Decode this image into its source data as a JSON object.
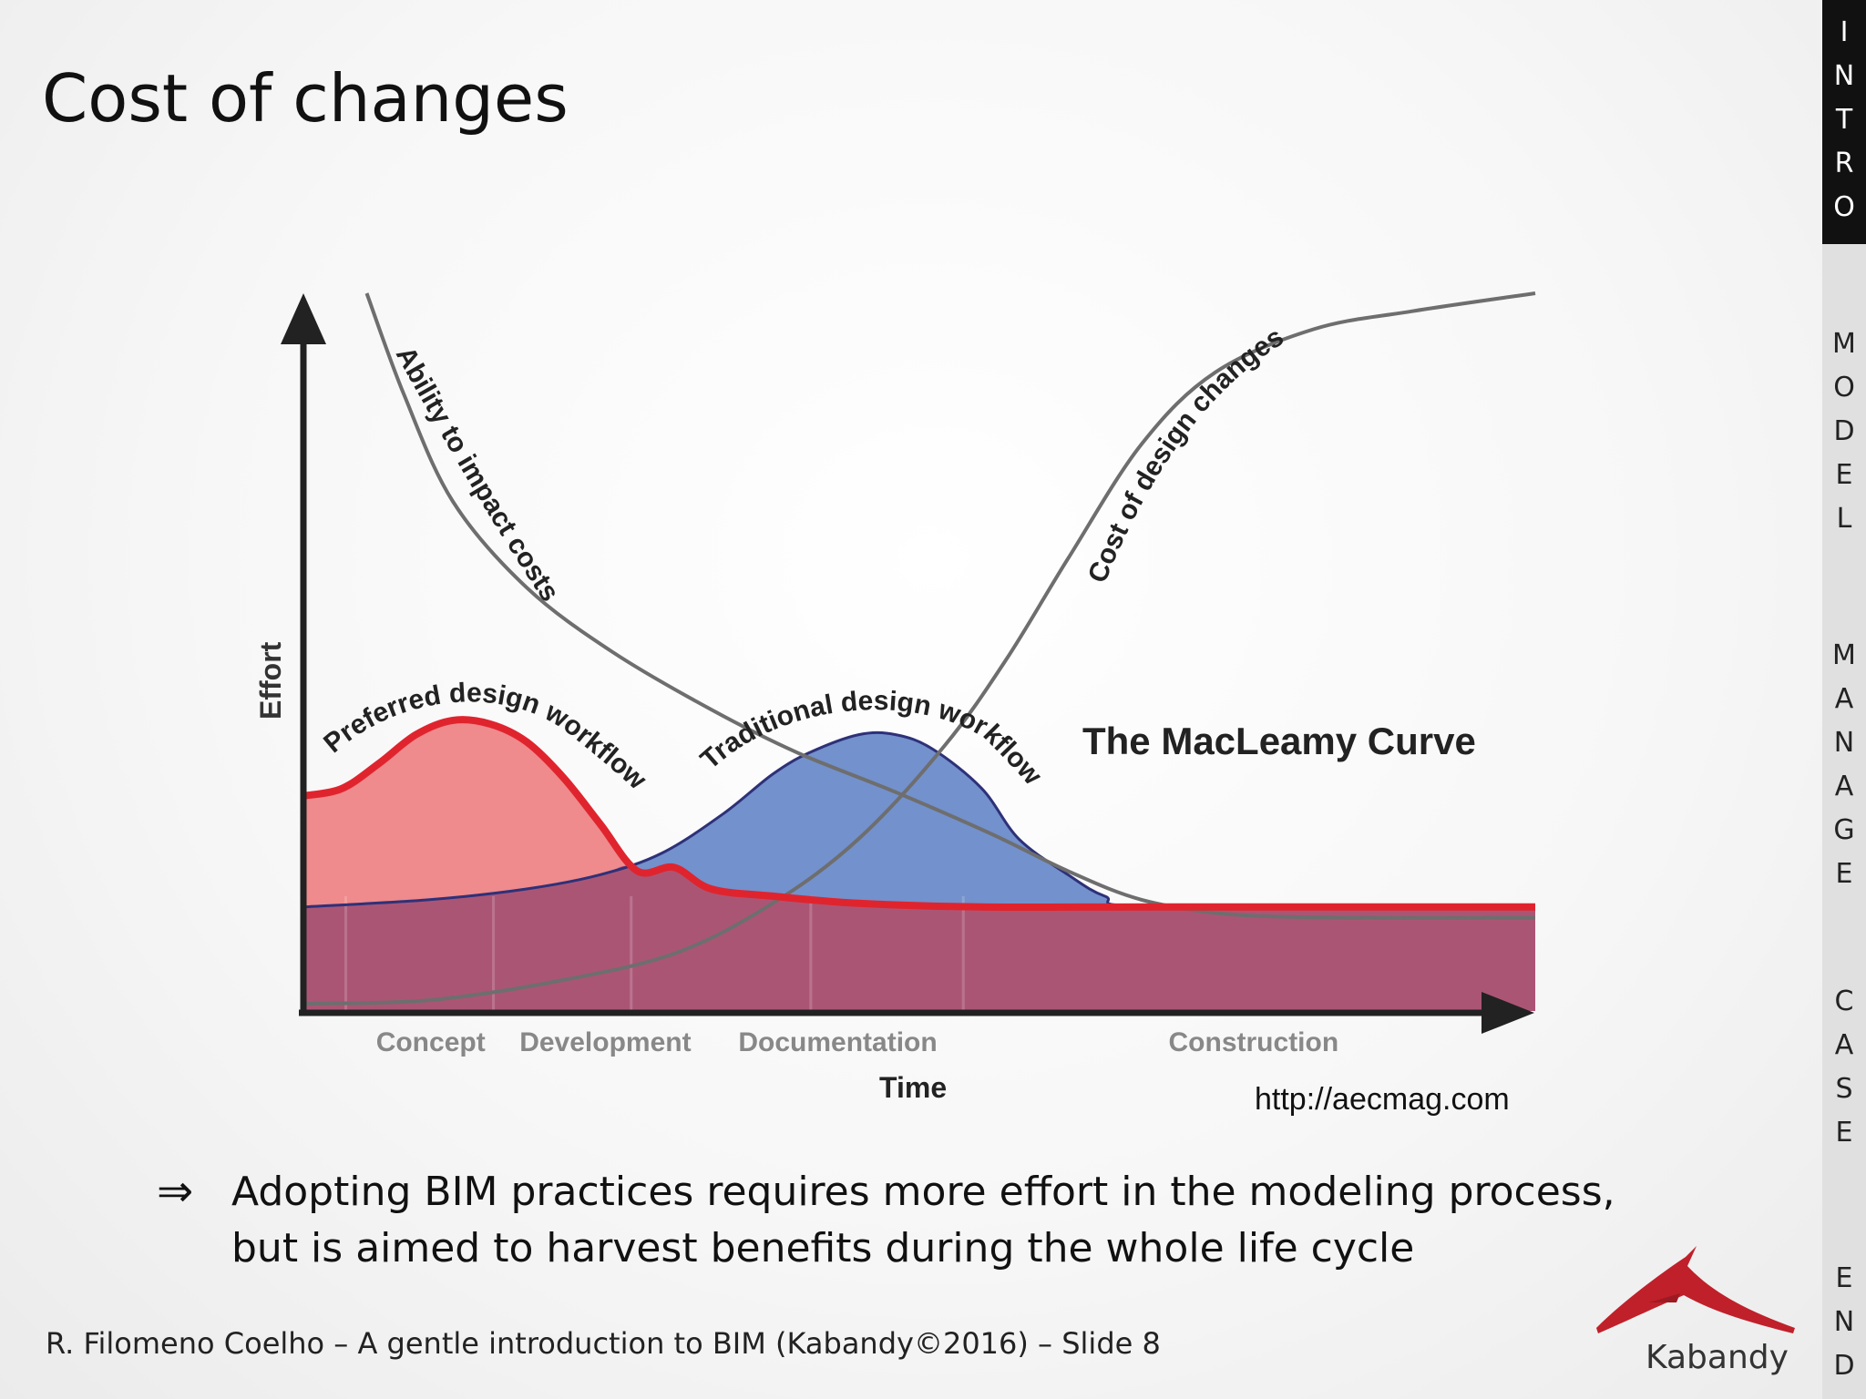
{
  "slide": {
    "title": "Cost of changes",
    "bullet_symbol": "⇒",
    "bullet_line1": "Adopting BIM practices requires more effort in the modeling process,",
    "bullet_line2": "but is aimed to harvest benefits during the whole life cycle",
    "footer": "R. Filomeno Coelho – A gentle introduction to BIM (Kabandy©2016) – Slide 8",
    "logo_text": "Kabandy"
  },
  "nav": {
    "items": [
      {
        "label": "INTRO",
        "active": true
      },
      {
        "label": "MODEL",
        "active": false
      },
      {
        "label": "MANAGE",
        "active": false
      },
      {
        "label": "CASE",
        "active": false
      },
      {
        "label": "END",
        "active": false
      }
    ]
  },
  "colors": {
    "accent_red": "#e0242e",
    "preferred_fill": "#ef8a8d",
    "traditional_fill": "#7391cc",
    "overlap_fill": "#ab5575",
    "navy": "#2e3178",
    "gray_curve": "#6e6e6e"
  },
  "chart_data": {
    "type": "area",
    "title": "The MacLeamy Curve",
    "xlabel": "Time",
    "ylabel": "Effort",
    "source": "http://aecmag.com",
    "xlim": [
      0,
      100
    ],
    "ylim": [
      0,
      100
    ],
    "phases": [
      {
        "label": "Concept",
        "x": 10.2
      },
      {
        "label": "Development",
        "x": 24.4
      },
      {
        "label": "Documentation",
        "x": 43.3
      },
      {
        "label": "Construction",
        "x": 77.1
      }
    ],
    "series": [
      {
        "name": "Ability to impact costs",
        "kind": "line",
        "label": "Ability to impact costs",
        "x": [
          5,
          8,
          12,
          18,
          25,
          33,
          40,
          48,
          56,
          62,
          68,
          75,
          85,
          100
        ],
        "y": [
          100,
          86,
          71,
          59,
          50,
          42,
          36,
          30.5,
          24.5,
          19.5,
          15.5,
          13.5,
          13,
          13
        ]
      },
      {
        "name": "Cost of design changes",
        "kind": "line",
        "label": "Cost of design changes",
        "x": [
          0,
          10,
          20,
          30,
          38,
          45,
          52,
          57,
          62,
          68,
          74,
          82,
          90,
          100
        ],
        "y": [
          1,
          1.5,
          4,
          8,
          15,
          24,
          37,
          49,
          63,
          79,
          89,
          95,
          97.5,
          100
        ]
      },
      {
        "name": "Traditional design workflow",
        "kind": "area",
        "label": "Traditional design workflow",
        "x": [
          0,
          10,
          18,
          24,
          29,
          34,
          38,
          41,
          45,
          48,
          51,
          55,
          58,
          62,
          65,
          69,
          100
        ],
        "y": [
          14.5,
          15.5,
          17,
          19,
          22,
          27.5,
          33,
          36,
          38.5,
          38.5,
          36.5,
          31,
          24,
          19,
          16,
          14.5,
          14.5
        ]
      },
      {
        "name": "Preferred design workflow",
        "kind": "area",
        "label": "Preferred design workflow",
        "x": [
          0,
          3,
          6,
          9,
          12,
          15,
          18,
          21,
          24,
          27,
          30,
          33,
          38,
          45,
          55,
          70,
          100
        ],
        "y": [
          30,
          31,
          34.5,
          38.5,
          40.5,
          40,
          37.5,
          32.5,
          26,
          19.5,
          20,
          17,
          16,
          15,
          14.5,
          14.5,
          14.5
        ]
      }
    ]
  }
}
